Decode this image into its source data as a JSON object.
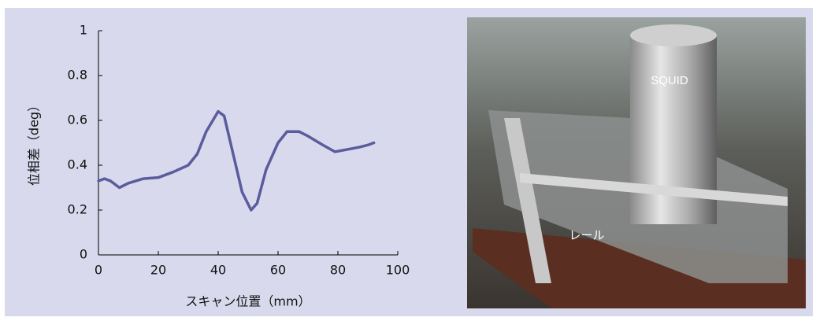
{
  "chart_data": {
    "type": "line",
    "x_label": "スキャン位置（mm）",
    "y_label": "位相差（deg）",
    "x": [
      0,
      2,
      4,
      7,
      10,
      15,
      20,
      25,
      30,
      33,
      36,
      40,
      42,
      45,
      48,
      51,
      53,
      56,
      60,
      63,
      67,
      70,
      75,
      79,
      83,
      87,
      90,
      92
    ],
    "values": [
      0.33,
      0.34,
      0.33,
      0.3,
      0.32,
      0.34,
      0.345,
      0.37,
      0.4,
      0.45,
      0.55,
      0.64,
      0.62,
      0.45,
      0.28,
      0.2,
      0.23,
      0.38,
      0.5,
      0.55,
      0.55,
      0.53,
      0.49,
      0.46,
      0.47,
      0.48,
      0.49,
      0.5
    ],
    "color": "#5b5c9c",
    "xlim": [
      0,
      100
    ],
    "xticks": [
      0,
      20,
      40,
      60,
      80,
      100
    ],
    "ylim": [
      0,
      1
    ],
    "yticks": [
      0,
      0.2,
      0.4,
      0.6,
      0.8,
      1
    ]
  },
  "photo": {
    "labels": [
      "SQUID",
      "レール"
    ]
  }
}
